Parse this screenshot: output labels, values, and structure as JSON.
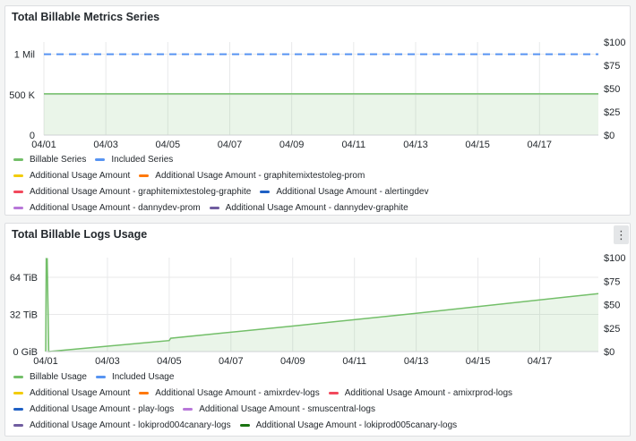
{
  "panels": [
    {
      "title": "Total Billable Metrics Series",
      "menu_icon": "⋮",
      "show_menu": false,
      "legend_rows": [
        [
          {
            "name": "Billable Series",
            "color": "#73bf69"
          },
          {
            "name": "Included Series",
            "color": "#5794f2"
          }
        ],
        [
          {
            "name": "Additional Usage Amount",
            "color": "#f2cc0c"
          },
          {
            "name": "Additional Usage Amount - graphitemixtestoleg-prom",
            "color": "#ff780a"
          }
        ],
        [
          {
            "name": "Additional Usage Amount - graphitemixtestoleg-graphite",
            "color": "#f2495c"
          },
          {
            "name": "Additional Usage Amount - alertingdev",
            "color": "#1f60c4"
          }
        ],
        [
          {
            "name": "Additional Usage Amount - dannydev-prom",
            "color": "#b877d9"
          },
          {
            "name": "Additional Usage Amount - dannydev-graphite",
            "color": "#705da0"
          }
        ]
      ]
    },
    {
      "title": "Total Billable Logs Usage",
      "menu_icon": "⋮",
      "show_menu": true,
      "legend_rows": [
        [
          {
            "name": "Billable Usage",
            "color": "#73bf69"
          },
          {
            "name": "Included Usage",
            "color": "#5794f2"
          }
        ],
        [
          {
            "name": "Additional Usage Amount",
            "color": "#f2cc0c"
          },
          {
            "name": "Additional Usage Amount - amixrdev-logs",
            "color": "#ff780a"
          },
          {
            "name": "Additional Usage Amount - amixrprod-logs",
            "color": "#f2495c"
          }
        ],
        [
          {
            "name": "Additional Usage Amount - play-logs",
            "color": "#1f60c4"
          },
          {
            "name": "Additional Usage Amount - smuscentral-logs",
            "color": "#b877d9"
          }
        ],
        [
          {
            "name": "Additional Usage Amount - lokiprod004canary-logs",
            "color": "#705da0"
          },
          {
            "name": "Additional Usage Amount - lokiprod005canary-logs",
            "color": "#1a7311"
          }
        ]
      ]
    }
  ],
  "chart_data": [
    {
      "type": "area",
      "title": "Total Billable Metrics Series",
      "x_ticks": [
        "04/01",
        "04/03",
        "04/05",
        "04/07",
        "04/09",
        "04/11",
        "04/13",
        "04/15",
        "04/17"
      ],
      "x_range": [
        "04/01",
        "04/17.9"
      ],
      "y_left_ticks": [
        "0",
        "500 K",
        "1 Mil"
      ],
      "y_left_range": [
        0,
        1150000
      ],
      "y_right_ticks": [
        "$0",
        "$25",
        "$50",
        "$75",
        "$100"
      ],
      "y_right_range": [
        0,
        100
      ],
      "grid": true,
      "legend_placement": "bottom",
      "series": [
        {
          "name": "Billable Series",
          "color": "#73bf69",
          "style": "area",
          "x": [
            0,
            17.9
          ],
          "y": [
            510000,
            510000
          ]
        },
        {
          "name": "Included Series",
          "color": "#5794f2",
          "style": "dashed",
          "x": [
            0,
            17.9
          ],
          "y": [
            1000000,
            1000000
          ]
        }
      ]
    },
    {
      "type": "area",
      "title": "Total Billable Logs Usage",
      "x_ticks": [
        "04/01",
        "04/03",
        "04/05",
        "04/07",
        "04/09",
        "04/11",
        "04/13",
        "04/15",
        "04/17"
      ],
      "x_range": [
        "04/01",
        "04/17.9"
      ],
      "y_left_ticks": [
        "0 GiB",
        "32 TiB",
        "64 TiB"
      ],
      "y_left_ticks_note": "first tick label is partly clipped, rendered as 64 TiB",
      "y_left_range": [
        0,
        81
      ],
      "y_right_ticks": [
        "$0",
        "$25",
        "$50",
        "$75",
        "$100"
      ],
      "y_right_range": [
        0,
        100
      ],
      "grid": true,
      "legend_placement": "bottom",
      "series": [
        {
          "name": "Billable Usage",
          "color": "#73bf69",
          "style": "area",
          "x": [
            0,
            0.02,
            0.05,
            0.1,
            4,
            4.05,
            8,
            12,
            17.9
          ],
          "y": [
            0,
            80,
            80,
            0,
            9.5,
            11.5,
            22,
            33,
            50
          ]
        }
      ]
    }
  ]
}
